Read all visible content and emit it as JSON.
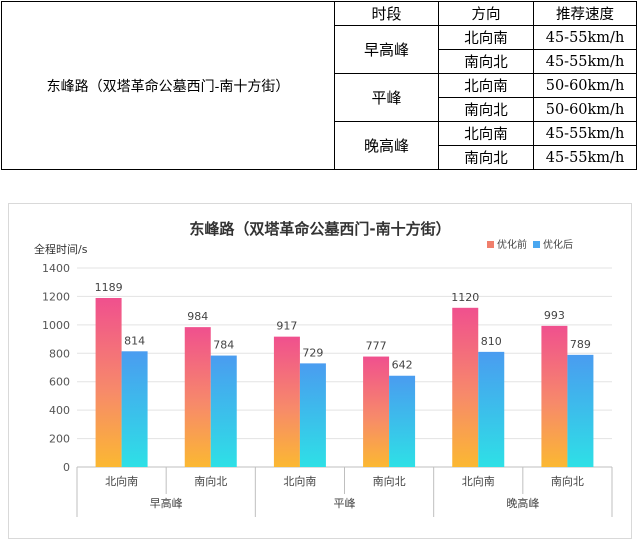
{
  "table": {
    "road": "东峰路（双塔革命公墓西门-南十方街）",
    "headers": {
      "period": "时段",
      "direction": "方向",
      "speed": "推荐速度"
    },
    "groups": [
      {
        "period": "早高峰",
        "rows": [
          {
            "direction": "北向南",
            "speed": "45-55km/h"
          },
          {
            "direction": "南向北",
            "speed": "45-55km/h"
          }
        ]
      },
      {
        "period": "平峰",
        "rows": [
          {
            "direction": "北向南",
            "speed": "50-60km/h"
          },
          {
            "direction": "南向北",
            "speed": "50-60km/h"
          }
        ]
      },
      {
        "period": "晚高峰",
        "rows": [
          {
            "direction": "北向南",
            "speed": "45-55km/h"
          },
          {
            "direction": "南向北",
            "speed": "45-55km/h"
          }
        ]
      }
    ]
  },
  "chart_data": {
    "type": "bar",
    "title": "东峰路（双塔革命公墓西门-南十方街）",
    "ylabel": "全程时间/s",
    "xlabel": "",
    "ylim": [
      0,
      1400
    ],
    "yticks": [
      0,
      200,
      400,
      600,
      800,
      1000,
      1200,
      1400
    ],
    "categories": [
      "北向南",
      "南向北",
      "北向南",
      "南向北",
      "北向南",
      "南向北"
    ],
    "groups": [
      "早高峰",
      "平峰",
      "晚高峰"
    ],
    "series": [
      {
        "name": "优化前",
        "values": [
          1189,
          984,
          917,
          777,
          1120,
          993
        ],
        "color": "#f06292"
      },
      {
        "name": "优化后",
        "values": [
          814,
          784,
          729,
          642,
          810,
          789
        ],
        "color": "#4fb3f0"
      }
    ],
    "legend": "top-right",
    "grid": true
  }
}
